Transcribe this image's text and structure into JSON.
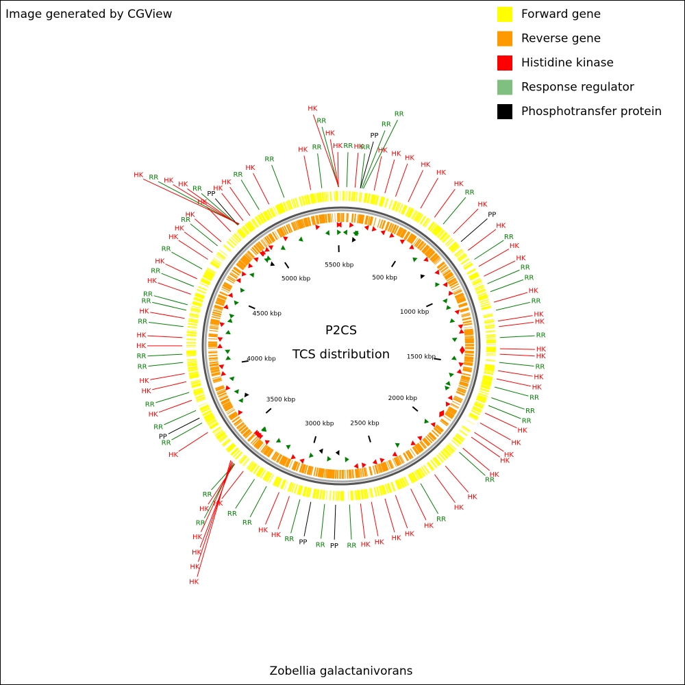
{
  "header": {
    "text": "Image generated by CGView"
  },
  "legend": [
    {
      "label": "Forward gene",
      "color": "#ffff00"
    },
    {
      "label": "Reverse gene",
      "color": "#ff9900"
    },
    {
      "label": "Histidine kinase",
      "color": "#ff0000"
    },
    {
      "label": "Response regulator",
      "color": "#7fbf7f"
    },
    {
      "label": "Phosphotransfer protein",
      "color": "#000000"
    }
  ],
  "center_title": [
    "P2CS",
    "TCS distribution"
  ],
  "organism": "Zobellia galactanivorans",
  "map": {
    "xlim": [
      0,
      5521
    ],
    "ticks": [
      {
        "value": 500,
        "label": "500 kbp"
      },
      {
        "value": 1000,
        "label": "1000 kbp"
      },
      {
        "value": 1500,
        "label": "1500 kbp"
      },
      {
        "value": 2000,
        "label": "2000 kbp"
      },
      {
        "value": 2500,
        "label": "2500 kbp"
      },
      {
        "value": 3000,
        "label": "3000 kbp"
      },
      {
        "value": 3500,
        "label": "3500 kbp"
      },
      {
        "value": 4000,
        "label": "4000 kbp"
      },
      {
        "value": 4500,
        "label": "4500 kbp"
      },
      {
        "value": 5000,
        "label": "5000 kbp"
      },
      {
        "value": 5500,
        "label": "5500 kbp"
      }
    ],
    "label_colors": {
      "HK": "#ff0000",
      "RR": "#008000",
      "PP": "#000000"
    },
    "marker_colors": {
      "HK": "#ff0000",
      "RR": "#008000",
      "PP": "#000000"
    },
    "features": [
      {
        "label": "RR",
        "position": 31
      },
      {
        "label": "HK",
        "position": 77
      },
      {
        "label": "RR",
        "position": 107
      },
      {
        "label": "PP",
        "position": 107
      },
      {
        "label": "RR",
        "position": 115
      },
      {
        "label": "RR",
        "position": 123
      },
      {
        "label": "HK",
        "position": 184
      },
      {
        "label": "HK",
        "position": 245
      },
      {
        "label": "HK",
        "position": 307
      },
      {
        "label": "HK",
        "position": 383
      },
      {
        "label": "HK",
        "position": 460
      },
      {
        "label": "HK",
        "position": 552
      },
      {
        "label": "RR",
        "position": 613
      },
      {
        "label": "HK",
        "position": 690
      },
      {
        "label": "PP",
        "position": 751
      },
      {
        "label": "HK",
        "position": 813
      },
      {
        "label": "RR",
        "position": 874
      },
      {
        "label": "HK",
        "position": 920
      },
      {
        "label": "HK",
        "position": 981
      },
      {
        "label": "RR",
        "position": 1027
      },
      {
        "label": "RR",
        "position": 1074
      },
      {
        "label": "HK",
        "position": 1135
      },
      {
        "label": "RR",
        "position": 1181
      },
      {
        "label": "HK",
        "position": 1242
      },
      {
        "label": "HK",
        "position": 1273
      },
      {
        "label": "RR",
        "position": 1334
      },
      {
        "label": "HK",
        "position": 1396
      },
      {
        "label": "HK",
        "position": 1426
      },
      {
        "label": "RR",
        "position": 1472
      },
      {
        "label": "HK",
        "position": 1518
      },
      {
        "label": "HK",
        "position": 1564
      },
      {
        "label": "RR",
        "position": 1610
      },
      {
        "label": "RR",
        "position": 1672
      },
      {
        "label": "RR",
        "position": 1718
      },
      {
        "label": "HK",
        "position": 1764
      },
      {
        "label": "HK",
        "position": 1825
      },
      {
        "label": "HK",
        "position": 1886
      },
      {
        "label": "HK",
        "position": 1917
      },
      {
        "label": "HK",
        "position": 1994
      },
      {
        "label": "RR",
        "position": 2024
      },
      {
        "label": "HK",
        "position": 2132
      },
      {
        "label": "HK",
        "position": 2208
      },
      {
        "label": "RR",
        "position": 2300
      },
      {
        "label": "HK",
        "position": 2362
      },
      {
        "label": "HK",
        "position": 2454
      },
      {
        "label": "HK",
        "position": 2515
      },
      {
        "label": "HK",
        "position": 2592
      },
      {
        "label": "HK",
        "position": 2653
      },
      {
        "label": "RR",
        "position": 2714
      },
      {
        "label": "PP",
        "position": 2791
      },
      {
        "label": "RR",
        "position": 2852
      },
      {
        "label": "PP",
        "position": 2929
      },
      {
        "label": "RR",
        "position": 2991
      },
      {
        "label": "HK",
        "position": 3052
      },
      {
        "label": "HK",
        "position": 3113
      },
      {
        "label": "RR",
        "position": 3190
      },
      {
        "label": "RR",
        "position": 3267
      },
      {
        "label": "HK",
        "position": 3343
      },
      {
        "label": "RR",
        "position": 3405
      },
      {
        "label": "HK",
        "position": 3405
      },
      {
        "label": "RR",
        "position": 3412
      },
      {
        "label": "HK",
        "position": 3420
      },
      {
        "label": "HK",
        "position": 3420
      },
      {
        "label": "HK",
        "position": 3428
      },
      {
        "label": "HK",
        "position": 3435
      },
      {
        "label": "HK",
        "position": 3635
      },
      {
        "label": "RR",
        "position": 3696
      },
      {
        "label": "PP",
        "position": 3727
      },
      {
        "label": "RR",
        "position": 3773
      },
      {
        "label": "HK",
        "position": 3834
      },
      {
        "label": "RR",
        "position": 3880
      },
      {
        "label": "HK",
        "position": 3941
      },
      {
        "label": "HK",
        "position": 3987
      },
      {
        "label": "RR",
        "position": 4049
      },
      {
        "label": "RR",
        "position": 4095
      },
      {
        "label": "HK",
        "position": 4141
      },
      {
        "label": "HK",
        "position": 4187
      },
      {
        "label": "RR",
        "position": 4248
      },
      {
        "label": "HK",
        "position": 4294
      },
      {
        "label": "RR",
        "position": 4340
      },
      {
        "label": "RR",
        "position": 4371
      },
      {
        "label": "HK",
        "position": 4432
      },
      {
        "label": "RR",
        "position": 4478
      },
      {
        "label": "HK",
        "position": 4524
      },
      {
        "label": "RR",
        "position": 4585
      },
      {
        "label": "HK",
        "position": 4647
      },
      {
        "label": "HK",
        "position": 4693
      },
      {
        "label": "RR",
        "position": 4739
      },
      {
        "label": "HK",
        "position": 4769
      },
      {
        "label": "HK",
        "position": 4846
      },
      {
        "label": "PP",
        "position": 4900
      },
      {
        "label": "RR",
        "position": 4900
      },
      {
        "label": "HK",
        "position": 4902
      },
      {
        "label": "HK",
        "position": 4905
      },
      {
        "label": "RR",
        "position": 4907
      },
      {
        "label": "HK",
        "position": 4910
      },
      {
        "label": "HK",
        "position": 4938
      },
      {
        "label": "HK",
        "position": 4984
      },
      {
        "label": "RR",
        "position": 5045
      },
      {
        "label": "HK",
        "position": 5107
      },
      {
        "label": "RR",
        "position": 5199
      },
      {
        "label": "HK",
        "position": 5352
      },
      {
        "label": "RR",
        "position": 5414
      },
      {
        "label": "HK",
        "position": 5506
      },
      {
        "label": "HK",
        "position": 5506
      },
      {
        "label": "RR",
        "position": 5506
      },
      {
        "label": "HK",
        "position": 5508
      }
    ]
  }
}
